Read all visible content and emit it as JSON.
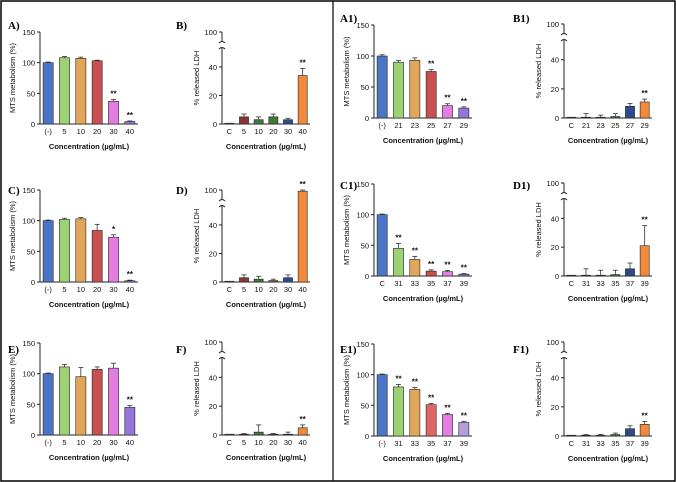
{
  "figure": {
    "frame_color": "#000000",
    "divider": true
  },
  "colors": {
    "blue": "#4a74c5",
    "green": "#9dd272",
    "orange": "#e2a65a",
    "red": "#c75050",
    "pink": "#e27ee2",
    "purple": "#9575d9",
    "navy": "#2d4b8a",
    "darkred": "#8c3338",
    "darkgreen": "#3d7a3a",
    "bright_orange": "#f28a3c",
    "salmon": "#e06666",
    "lavender": "#b39ddb"
  },
  "chart_data": [
    {
      "id": "A",
      "panel_label": "A)",
      "type": "bar",
      "ylabel": "MTS metabolism (%)",
      "xlabel": "Concentration (µg/mL)",
      "ylim": [
        0,
        150
      ],
      "yticks": [
        "0",
        "50",
        "100",
        "150"
      ],
      "categories": [
        "(-)",
        "5",
        "10",
        "20",
        "30",
        "40"
      ],
      "values": [
        100,
        108,
        107,
        103,
        37,
        4
      ],
      "errors": [
        1,
        2,
        2,
        1,
        3,
        1
      ],
      "significance": [
        "",
        "",
        "",
        "",
        "**",
        "**"
      ],
      "bar_colors": [
        "#4a74c5",
        "#9dd272",
        "#e2a65a",
        "#c75050",
        "#e27ee2",
        "#9575d9"
      ]
    },
    {
      "id": "B",
      "panel_label": "B)",
      "type": "bar",
      "ylabel": "% released LDH",
      "xlabel": "Concentration (µg/mL)",
      "ylim": [
        0,
        100
      ],
      "yticks": [
        "0",
        "20",
        "40",
        "100"
      ],
      "categories": [
        "C",
        "5",
        "10",
        "20",
        "30",
        "40"
      ],
      "values": [
        0,
        5,
        3,
        5,
        3,
        34
      ],
      "errors": [
        0,
        2,
        2,
        2,
        1,
        5
      ],
      "significance": [
        "",
        "",
        "",
        "",
        "",
        "**"
      ],
      "bar_colors": [
        "#4a74c5",
        "#8c3338",
        "#3d7a3a",
        "#3d7a3a",
        "#2d4b8a",
        "#f28a3c"
      ]
    },
    {
      "id": "A1",
      "panel_label": "A1)",
      "type": "bar",
      "ylabel": "MTS metabolism (%)",
      "xlabel": "Concentration (µg/mL)",
      "ylim": [
        0,
        150
      ],
      "yticks": [
        "0",
        "50",
        "100",
        "150"
      ],
      "categories": [
        "(-)",
        "21",
        "23",
        "25",
        "27",
        "29"
      ],
      "values": [
        100,
        90,
        93,
        75,
        20,
        16
      ],
      "errors": [
        2,
        3,
        4,
        3,
        3,
        2
      ],
      "significance": [
        "",
        "",
        "",
        "**",
        "**",
        "**"
      ],
      "bar_colors": [
        "#4a74c5",
        "#9dd272",
        "#e2a65a",
        "#c75050",
        "#e27ee2",
        "#9575d9"
      ]
    },
    {
      "id": "B1",
      "panel_label": "B1)",
      "type": "bar",
      "ylabel": "% released LDH",
      "xlabel": "Concentration (µg/mL)",
      "ylim": [
        0,
        100
      ],
      "yticks": [
        "0",
        "20",
        "40",
        "100"
      ],
      "categories": [
        "C",
        "21",
        "23",
        "25",
        "27",
        "29"
      ],
      "values": [
        0,
        0,
        0,
        1,
        8,
        11
      ],
      "errors": [
        0,
        3,
        2,
        2,
        2,
        2
      ],
      "significance": [
        "",
        "",
        "",
        "",
        "",
        "**"
      ],
      "bar_colors": [
        "#4a74c5",
        "#8c3338",
        "#3d7a3a",
        "#3d7a3a",
        "#2d4b8a",
        "#f28a3c"
      ]
    },
    {
      "id": "C",
      "panel_label": "C)",
      "type": "bar",
      "ylabel": "MTS metabolism (%)",
      "xlabel": "Concentration (µg/mL)",
      "ylim": [
        0,
        150
      ],
      "yticks": [
        "0",
        "50",
        "100",
        "150"
      ],
      "categories": [
        "(-)",
        "5",
        "10",
        "20",
        "30",
        "40"
      ],
      "values": [
        100,
        102,
        103,
        84,
        73,
        2
      ],
      "errors": [
        1,
        2,
        2,
        10,
        4,
        1
      ],
      "significance": [
        "",
        "",
        "",
        "",
        "*",
        "**"
      ],
      "bar_colors": [
        "#4a74c5",
        "#9dd272",
        "#e2a65a",
        "#c75050",
        "#e27ee2",
        "#9575d9"
      ]
    },
    {
      "id": "D",
      "panel_label": "D)",
      "type": "bar",
      "ylabel": "% released LDH",
      "xlabel": "Concentration (µg/mL)",
      "ylim": [
        0,
        100
      ],
      "yticks": [
        "0",
        "20",
        "40",
        "100"
      ],
      "categories": [
        "C",
        "5",
        "10",
        "20",
        "30",
        "40"
      ],
      "values": [
        0,
        3,
        2,
        1,
        3,
        98
      ],
      "errors": [
        0,
        2,
        2,
        1,
        2,
        2
      ],
      "significance": [
        "",
        "",
        "",
        "",
        "",
        "**"
      ],
      "bar_colors": [
        "#4a74c5",
        "#8c3338",
        "#3d7a3a",
        "#3d7a3a",
        "#2d4b8a",
        "#f28a3c"
      ]
    },
    {
      "id": "C1",
      "panel_label": "C1)",
      "type": "bar",
      "ylabel": "MTS metabolism (%)",
      "xlabel": "Concentration (µg/mL)",
      "ylim": [
        0,
        150
      ],
      "yticks": [
        "0",
        "50",
        "100",
        "150"
      ],
      "categories": [
        "C",
        "31",
        "33",
        "35",
        "37",
        "39"
      ],
      "values": [
        100,
        45,
        27,
        8,
        7,
        3
      ],
      "errors": [
        1,
        8,
        5,
        2,
        2,
        1
      ],
      "significance": [
        "",
        "**",
        "**",
        "**",
        "**",
        "**"
      ],
      "bar_colors": [
        "#4a74c5",
        "#9dd272",
        "#e2a65a",
        "#c75050",
        "#e27ee2",
        "#9575d9"
      ]
    },
    {
      "id": "D1",
      "panel_label": "D1)",
      "type": "bar",
      "ylabel": "% released LDH",
      "xlabel": "Concentration (µg/mL)",
      "ylim": [
        0,
        100
      ],
      "yticks": [
        "0",
        "20",
        "40",
        "100"
      ],
      "categories": [
        "C",
        "31",
        "33",
        "35",
        "37",
        "39"
      ],
      "values": [
        0,
        0,
        0,
        1,
        5,
        21
      ],
      "errors": [
        0,
        5,
        4,
        3,
        4,
        14
      ],
      "significance": [
        "",
        "",
        "",
        "",
        "",
        "**"
      ],
      "bar_colors": [
        "#4a74c5",
        "#8c3338",
        "#3d7a3a",
        "#3d7a3a",
        "#2d4b8a",
        "#f28a3c"
      ]
    },
    {
      "id": "E",
      "panel_label": "E)",
      "type": "bar",
      "ylabel": "MTS metabolism (%)",
      "xlabel": "Concentration (µg/mL)",
      "ylim": [
        0,
        150
      ],
      "yticks": [
        "0",
        "50",
        "100",
        "150"
      ],
      "categories": [
        "(-)",
        "5",
        "10",
        "20",
        "30",
        "40"
      ],
      "values": [
        100,
        111,
        95,
        107,
        109,
        45
      ],
      "errors": [
        1,
        4,
        15,
        4,
        8,
        3
      ],
      "significance": [
        "",
        "",
        "",
        "",
        "",
        "**"
      ],
      "bar_colors": [
        "#4a74c5",
        "#9dd272",
        "#e2a65a",
        "#c75050",
        "#e27ee2",
        "#9575d9"
      ]
    },
    {
      "id": "F",
      "panel_label": "F)",
      "type": "bar",
      "ylabel": "% released LDH",
      "xlabel": "Concentration (µg/mL)",
      "ylim": [
        0,
        100
      ],
      "yticks": [
        "0",
        "20",
        "40",
        "100"
      ],
      "categories": [
        "C",
        "5",
        "10",
        "20",
        "30",
        "40"
      ],
      "values": [
        0,
        0,
        2,
        0,
        0,
        5
      ],
      "errors": [
        0,
        1,
        5,
        1,
        2,
        2
      ],
      "significance": [
        "",
        "",
        "",
        "",
        "",
        "**"
      ],
      "bar_colors": [
        "#4a74c5",
        "#8c3338",
        "#3d7a3a",
        "#3d7a3a",
        "#2d4b8a",
        "#f28a3c"
      ]
    },
    {
      "id": "E1",
      "panel_label": "E1)",
      "type": "bar",
      "ylabel": "MTS metabolism (%)",
      "xlabel": "Concentration (µg/mL)",
      "ylim": [
        0,
        150
      ],
      "yticks": [
        "0",
        "50",
        "100",
        "150"
      ],
      "categories": [
        "(-)",
        "31",
        "33",
        "35",
        "37",
        "39"
      ],
      "values": [
        100,
        80,
        76,
        51,
        35,
        22
      ],
      "errors": [
        1,
        4,
        3,
        2,
        2,
        2
      ],
      "significance": [
        "",
        "**",
        "**",
        "**",
        "**",
        "**"
      ],
      "bar_colors": [
        "#4a74c5",
        "#9dd272",
        "#e2a65a",
        "#e06666",
        "#e27ee2",
        "#b39ddb"
      ]
    },
    {
      "id": "F1",
      "panel_label": "F1)",
      "type": "bar",
      "ylabel": "% released LDH",
      "xlabel": "Concentration (µg/mL)",
      "ylim": [
        0,
        100
      ],
      "yticks": [
        "0",
        "20",
        "40",
        "100"
      ],
      "categories": [
        "C",
        "31",
        "33",
        "35",
        "37",
        "39"
      ],
      "values": [
        0,
        0,
        0,
        1,
        5,
        8
      ],
      "errors": [
        0,
        1,
        1,
        1,
        2,
        2
      ],
      "significance": [
        "",
        "",
        "",
        "",
        "",
        "**"
      ],
      "bar_colors": [
        "#4a74c5",
        "#8c3338",
        "#3d7a3a",
        "#3d7a3a",
        "#2d4b8a",
        "#f28a3c"
      ]
    }
  ]
}
